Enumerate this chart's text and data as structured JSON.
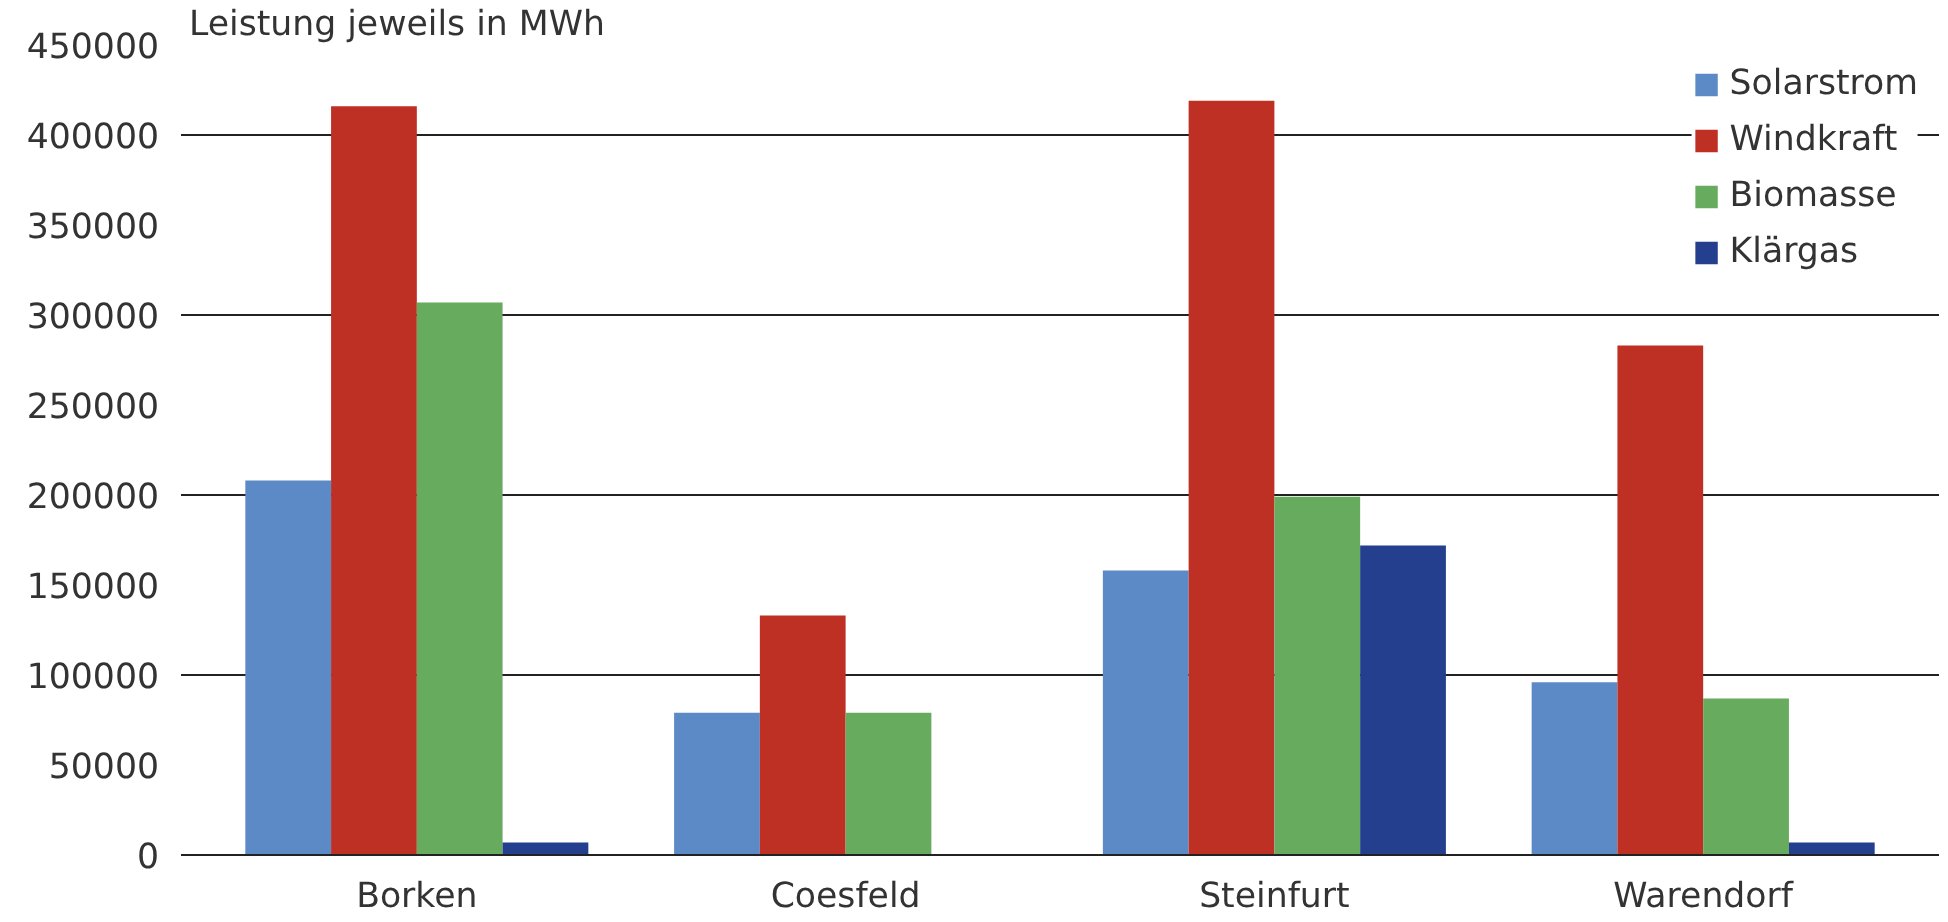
{
  "chart_data": {
    "type": "bar",
    "ylabel": "Leistung jeweils in MWh",
    "categories": [
      "Borken",
      "Coesfeld",
      "Steinfurt",
      "Warendorf"
    ],
    "series": [
      {
        "name": "Solarstrom",
        "color": "#5b8ac6",
        "values": [
          208000,
          79000,
          158000,
          96000
        ]
      },
      {
        "name": "Windkraft",
        "color": "#be3024",
        "values": [
          416000,
          133000,
          419000,
          283000
        ]
      },
      {
        "name": "Biomasse",
        "color": "#67ab5f",
        "values": [
          307000,
          79000,
          199000,
          87000
        ]
      },
      {
        "name": "Klärgas",
        "color": "#233f8e",
        "values": [
          7000,
          null,
          172000,
          7000
        ]
      }
    ],
    "ylim": [
      0,
      450000
    ],
    "yticks": [
      0,
      50000,
      100000,
      150000,
      200000,
      250000,
      300000,
      350000,
      400000,
      450000
    ],
    "grid": "y",
    "legend": "top right"
  }
}
